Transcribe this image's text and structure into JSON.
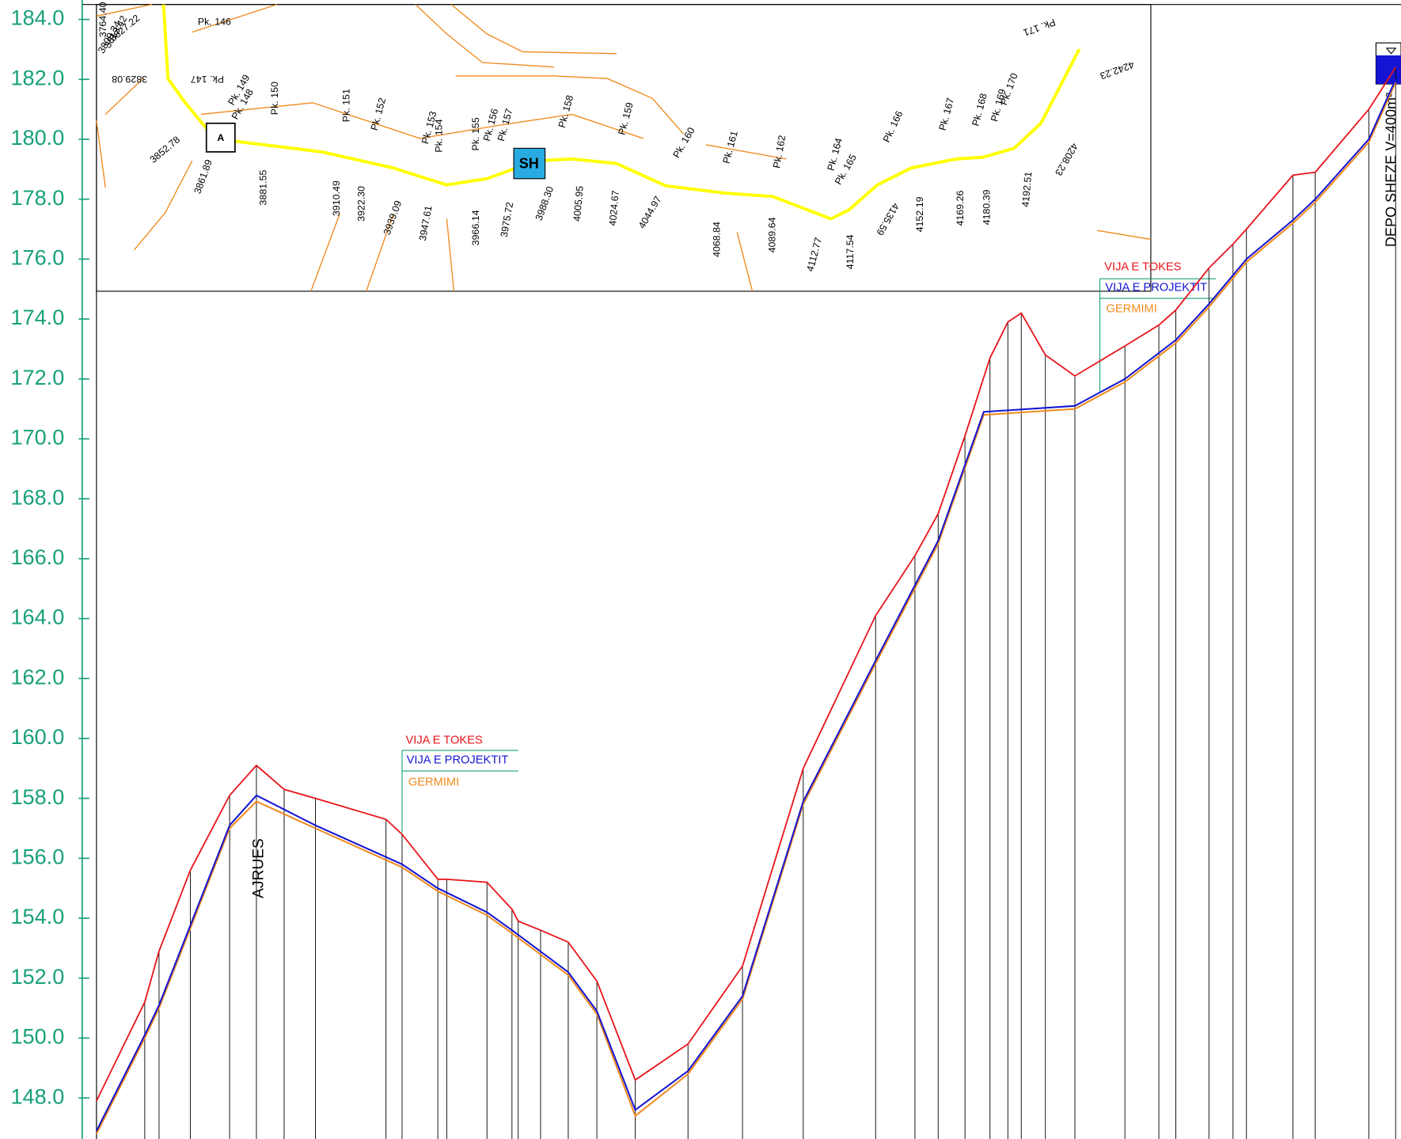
{
  "chart_data": {
    "type": "line",
    "annotations": [
      "AJRUES",
      "DEPO SHEZE V=400m³"
    ],
    "xlim": [
      0,
      1460
    ],
    "ylim": [
      146.6,
      184.5
    ],
    "yticks": [
      {
        "value": 148,
        "label": "148.0"
      },
      {
        "value": 150,
        "label": "150.0"
      },
      {
        "value": 152,
        "label": "152.0"
      },
      {
        "value": 154,
        "label": "154.0"
      },
      {
        "value": 156,
        "label": "156.0"
      },
      {
        "value": 158,
        "label": "158.0"
      },
      {
        "value": 160,
        "label": "160.0"
      },
      {
        "value": 162,
        "label": "162.0"
      },
      {
        "value": 164,
        "label": "164.0"
      },
      {
        "value": 166,
        "label": "166.0"
      },
      {
        "value": 168,
        "label": "168.0"
      },
      {
        "value": 170,
        "label": "170.0"
      },
      {
        "value": 172,
        "label": "172.0"
      },
      {
        "value": 174,
        "label": "174.0"
      },
      {
        "value": 176,
        "label": "176.0"
      },
      {
        "value": 178,
        "label": "178.0"
      },
      {
        "value": 180,
        "label": "180.0"
      },
      {
        "value": 182,
        "label": "182.0"
      },
      {
        "value": 184,
        "label": "184.0"
      }
    ],
    "series": [
      {
        "name": "VIJA E TOKES",
        "color": "#e8141b",
        "x": [
          0,
          54,
          70,
          105,
          149,
          179,
          210,
          245,
          324,
          342,
          382,
          392,
          437,
          465,
          472,
          497,
          528,
          560,
          603,
          662,
          723,
          791,
          872,
          916,
          942,
          972,
          1000,
          1020,
          1035,
          1062,
          1095,
          1151,
          1189,
          1208,
          1245,
          1272,
          1287,
          1339,
          1364,
          1424,
          1454
        ],
        "values": [
          147.9,
          151.2,
          152.9,
          155.6,
          158.1,
          159.1,
          158.3,
          158.0,
          157.3,
          156.8,
          155.3,
          155.3,
          155.2,
          154.3,
          153.9,
          153.6,
          153.2,
          151.9,
          148.6,
          149.8,
          152.4,
          159.0,
          164.1,
          166.1,
          167.5,
          170.1,
          172.7,
          173.9,
          174.2,
          172.8,
          172.1,
          173.1,
          173.8,
          174.3,
          175.7,
          176.5,
          177.0,
          178.8,
          178.9,
          181.0,
          182.4
        ]
      },
      {
        "name": "VIJA E PROJEKTIT",
        "color": "#1414d2",
        "x": [
          0,
          54,
          70,
          149,
          179,
          245,
          342,
          382,
          437,
          465,
          528,
          560,
          603,
          662,
          723,
          791,
          872,
          942,
          993,
          1095,
          1151,
          1208,
          1245,
          1287,
          1339,
          1364,
          1424,
          1454
        ],
        "values": [
          146.9,
          150.1,
          151.1,
          157.1,
          158.1,
          157.1,
          155.8,
          155.0,
          154.2,
          153.6,
          152.2,
          150.9,
          147.6,
          148.9,
          151.4,
          157.9,
          162.6,
          166.6,
          170.9,
          171.1,
          172.0,
          173.3,
          174.5,
          176.0,
          177.3,
          178.0,
          180.0,
          182.0
        ]
      },
      {
        "name": "GERMIMI",
        "color": "#f08a1e",
        "x": [
          0,
          54,
          70,
          149,
          179,
          245,
          342,
          382,
          437,
          465,
          528,
          560,
          603,
          662,
          723,
          791,
          872,
          942,
          993,
          1095,
          1151,
          1208,
          1245,
          1287,
          1339,
          1364,
          1424,
          1454
        ],
        "values": [
          146.8,
          150.0,
          151.0,
          157.0,
          157.9,
          157.0,
          155.7,
          154.9,
          154.1,
          153.5,
          152.1,
          150.8,
          147.4,
          148.8,
          151.3,
          157.8,
          162.5,
          166.5,
          170.8,
          171.0,
          171.9,
          173.2,
          174.4,
          175.9,
          177.2,
          177.9,
          179.9,
          181.9
        ]
      }
    ]
  },
  "plan": {
    "stations": [
      "Pk. 146",
      "Pk. 147",
      "Pk. 148",
      "Pk. 149",
      "Pk. 150",
      "Pk. 151",
      "Pk. 152",
      "Pk. 153",
      "Pk. 154",
      "Pk. 155",
      "Pk. 156",
      "Pk. 157",
      "Pk. 158",
      "Pk. 159",
      "Pk. 160",
      "Pk. 161",
      "Pk. 162",
      "Pk. 164",
      "Pk. 165",
      "Pk. 166",
      "Pk. 167",
      "Pk. 168",
      "Pk. 169",
      "Pk. 170",
      "Pk. 171"
    ],
    "chainages": [
      "3764.40",
      "3809.34",
      "3813.42",
      "3827.22",
      "3829.08",
      "3852.78",
      "3861.89",
      "3881.55",
      "3910.49",
      "3922.30",
      "3939.09",
      "3947.61",
      "3966.14",
      "3975.72",
      "3988.30",
      "4005.95",
      "4024.67",
      "4044.97",
      "4068.84",
      "4089.64",
      "4112.77",
      "4117.54",
      "4135.59",
      "4152.19",
      "4169.26",
      "4180.39",
      "4192.51",
      "4208.23",
      "4242.23"
    ],
    "symbols": [
      "SH",
      "A"
    ]
  }
}
